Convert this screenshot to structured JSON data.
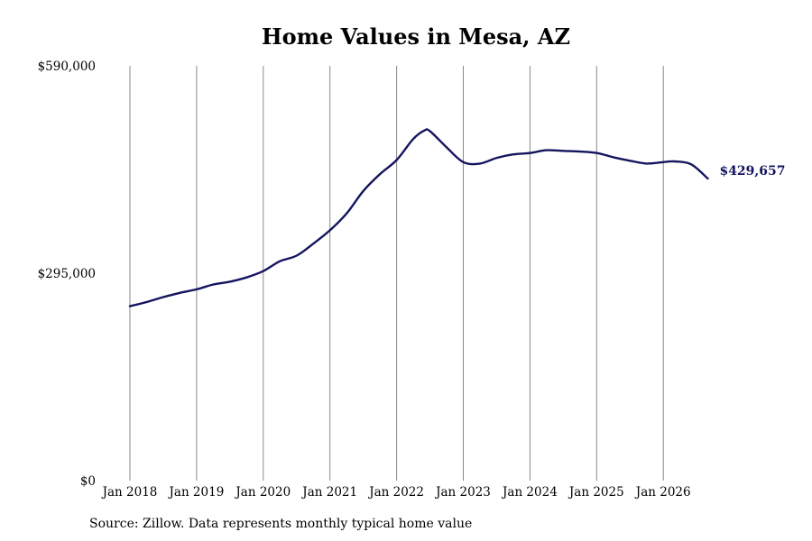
{
  "chart_data": {
    "type": "line",
    "title": "Home Values in Mesa, AZ",
    "source": "Source: Zillow. Data represents monthly typical home value",
    "xlabel": "",
    "ylabel": "",
    "ylim": [
      0,
      590000
    ],
    "y_ticks": [
      {
        "value": 0,
        "label": "$0"
      },
      {
        "value": 295000,
        "label": "$295,000"
      },
      {
        "value": 590000,
        "label": "$590,000"
      }
    ],
    "x_ticks": [
      {
        "date": "2018-01",
        "label": "Jan 2018"
      },
      {
        "date": "2019-01",
        "label": "Jan 2019"
      },
      {
        "date": "2020-01",
        "label": "Jan 2020"
      },
      {
        "date": "2021-01",
        "label": "Jan 2021"
      },
      {
        "date": "2022-01",
        "label": "Jan 2022"
      },
      {
        "date": "2023-01",
        "label": "Jan 2023"
      },
      {
        "date": "2024-01",
        "label": "Jan 2024"
      },
      {
        "date": "2025-01",
        "label": "Jan 2025"
      },
      {
        "date": "2026-01",
        "label": "Jan 2026"
      }
    ],
    "x_grid": true,
    "y_grid": false,
    "line_color": "#14145e",
    "grid_color": "#888888",
    "end_label": "$429,657",
    "series": [
      {
        "points": [
          [
            "2018-01",
            248000
          ],
          [
            "2018-04",
            254000
          ],
          [
            "2018-07",
            261000
          ],
          [
            "2018-10",
            267000
          ],
          [
            "2019-01",
            272000
          ],
          [
            "2019-04",
            279000
          ],
          [
            "2019-07",
            283000
          ],
          [
            "2019-10",
            289000
          ],
          [
            "2020-01",
            298000
          ],
          [
            "2020-04",
            312000
          ],
          [
            "2020-07",
            320000
          ],
          [
            "2020-10",
            337000
          ],
          [
            "2021-01",
            356000
          ],
          [
            "2021-04",
            380000
          ],
          [
            "2021-07",
            412000
          ],
          [
            "2021-10",
            436000
          ],
          [
            "2022-01",
            456000
          ],
          [
            "2022-04",
            486000
          ],
          [
            "2022-06",
            498000
          ],
          [
            "2022-07",
            497000
          ],
          [
            "2022-10",
            474000
          ],
          [
            "2023-01",
            453000
          ],
          [
            "2023-04",
            451000
          ],
          [
            "2023-07",
            459000
          ],
          [
            "2023-10",
            464000
          ],
          [
            "2024-01",
            466000
          ],
          [
            "2024-04",
            470000
          ],
          [
            "2024-07",
            469000
          ],
          [
            "2024-10",
            468000
          ],
          [
            "2025-01",
            466000
          ],
          [
            "2025-04",
            460000
          ],
          [
            "2025-07",
            455000
          ],
          [
            "2025-10",
            451000
          ],
          [
            "2026-01",
            453000
          ],
          [
            "2026-03",
            454000
          ],
          [
            "2026-06",
            450000
          ],
          [
            "2026-09",
            429657
          ]
        ]
      }
    ]
  }
}
